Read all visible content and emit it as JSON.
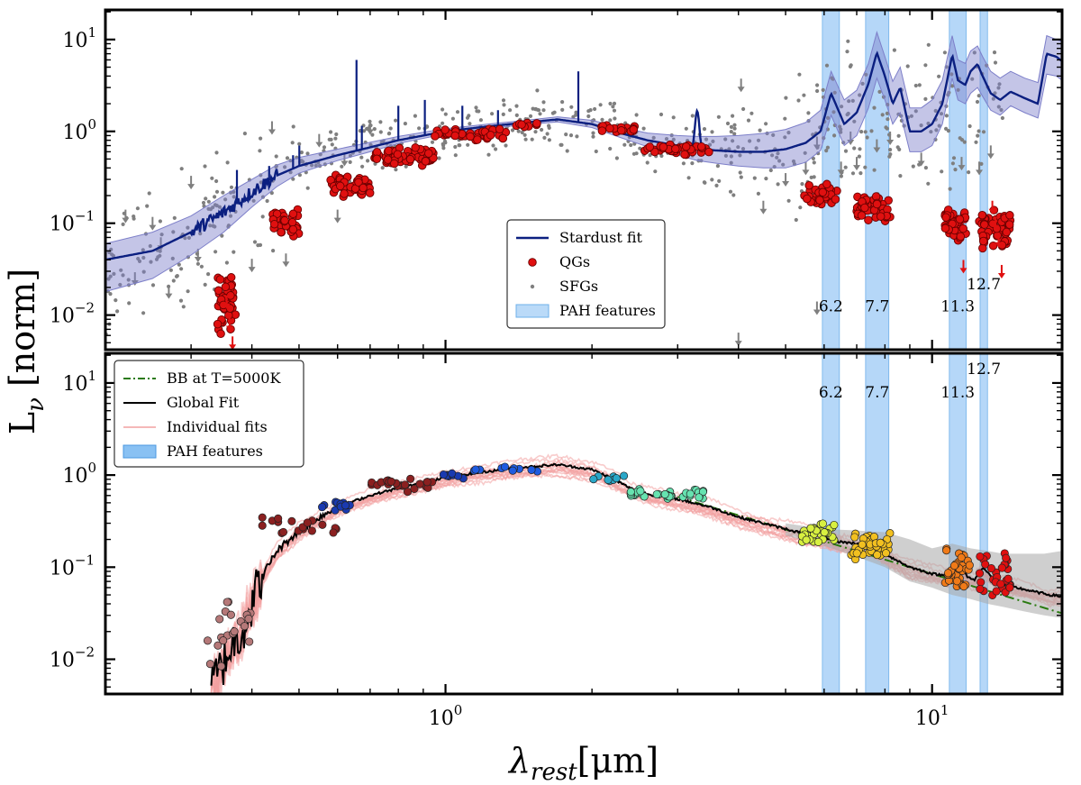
{
  "figure": {
    "ylabel": "L",
    "ylabel_sub": "ν",
    "ylabel_unit": " [norm]",
    "xlabel": "λ",
    "xlabel_sub": "rest",
    "xlabel_unit": "[μm]"
  },
  "colors": {
    "stardust_fit": "#0b1f80",
    "stardust_band": "#7d7fc9",
    "qg_points": "#e01010",
    "sfg_points": "#7f7f7f",
    "pah_band": "#9ccaf5",
    "bb_line": "#2a7a10",
    "global_fit": "#000000",
    "individual_fits": "#f2a0a0",
    "global_band": "#a8a8a8"
  },
  "chart_data": [
    {
      "id": "top",
      "type": "line",
      "title": "",
      "xscale": "log",
      "yscale": "log",
      "xlim": [
        0.2,
        18.5
      ],
      "ylim": [
        0.0042,
        21
      ],
      "x_ticks": [
        {
          "value": 1,
          "base": "10",
          "exp": "0"
        },
        {
          "value": 10,
          "base": "10",
          "exp": "1"
        }
      ],
      "x_ticks_labeled": false,
      "y_ticks": [
        {
          "value": 0.01,
          "base": "10",
          "exp": "−2"
        },
        {
          "value": 0.1,
          "base": "10",
          "exp": "−1"
        },
        {
          "value": 1,
          "base": "10",
          "exp": "0"
        },
        {
          "value": 10,
          "base": "10",
          "exp": "1"
        }
      ],
      "legend": {
        "placement": "lower-center",
        "entries": [
          {
            "label": "Stardust fit",
            "kind": "line"
          },
          {
            "label": "QGs",
            "kind": "red-dot"
          },
          {
            "label": "SFGs",
            "kind": "grey-dot"
          },
          {
            "label": "PAH features",
            "kind": "band"
          }
        ]
      },
      "pah_bands": [
        {
          "label": "6.2",
          "from": 5.95,
          "to": 6.45
        },
        {
          "label": "7.7",
          "from": 7.3,
          "to": 8.15
        },
        {
          "label": "11.3",
          "from": 10.85,
          "to": 11.75
        },
        {
          "label": "12.7",
          "from": 12.55,
          "to": 13.0
        }
      ],
      "pah_label_y": 0.011,
      "pah_label_y_127": 0.019,
      "stardust_fit": {
        "x": [
          0.2,
          0.25,
          0.3,
          0.35,
          0.4,
          0.45,
          0.5,
          0.6,
          0.7,
          0.8,
          1.0,
          1.2,
          1.4,
          1.7,
          2.0,
          2.3,
          2.6,
          3.0,
          3.3,
          3.6,
          4.0,
          4.5,
          5.0,
          5.5,
          5.9,
          6.2,
          6.6,
          7.0,
          7.4,
          7.7,
          8.0,
          8.3,
          8.6,
          9.0,
          9.5,
          10.0,
          10.5,
          11.0,
          11.3,
          11.7,
          12.0,
          12.4,
          12.7,
          13.2,
          13.8,
          14.5,
          15.5,
          16.5,
          17.2,
          18.0,
          18.5
        ],
        "y": [
          0.04,
          0.05,
          0.08,
          0.13,
          0.22,
          0.33,
          0.42,
          0.55,
          0.67,
          0.8,
          1.0,
          1.12,
          1.22,
          1.35,
          1.2,
          0.95,
          0.8,
          0.7,
          0.64,
          0.62,
          0.6,
          0.6,
          0.64,
          0.75,
          1.0,
          2.6,
          1.2,
          1.6,
          3.3,
          7.2,
          4.0,
          2.0,
          3.0,
          1.0,
          1.0,
          1.2,
          2.0,
          6.8,
          3.6,
          3.2,
          4.5,
          5.4,
          4.0,
          2.6,
          2.2,
          2.7,
          2.3,
          2.0,
          7.0,
          6.5,
          5.8
        ]
      },
      "stardust_band": {
        "lower": [
          0.018,
          0.025,
          0.045,
          0.08,
          0.15,
          0.25,
          0.35,
          0.48,
          0.6,
          0.74,
          0.94,
          1.06,
          1.16,
          1.27,
          1.1,
          0.85,
          0.68,
          0.55,
          0.48,
          0.45,
          0.42,
          0.4,
          0.4,
          0.46,
          0.62,
          1.5,
          0.7,
          0.9,
          1.8,
          3.8,
          2.2,
          1.2,
          1.6,
          0.6,
          0.6,
          0.7,
          1.2,
          3.8,
          2.2,
          2.0,
          2.6,
          3.0,
          2.4,
          1.7,
          1.5,
          1.9,
          1.6,
          1.4,
          4.2,
          4.0,
          3.6
        ],
        "upper": [
          0.06,
          0.08,
          0.12,
          0.2,
          0.3,
          0.43,
          0.52,
          0.64,
          0.76,
          0.88,
          1.07,
          1.19,
          1.29,
          1.44,
          1.32,
          1.1,
          0.96,
          0.9,
          0.88,
          0.88,
          0.9,
          0.95,
          1.05,
          1.25,
          1.7,
          4.5,
          2.2,
          2.8,
          5.5,
          12,
          6.5,
          3.5,
          5.0,
          1.8,
          1.8,
          2.2,
          3.6,
          11,
          6.0,
          5.5,
          7.5,
          8.5,
          6.5,
          4.5,
          3.8,
          4.5,
          3.8,
          3.4,
          11,
          10,
          9.5
        ]
      },
      "emission_lines": [
        {
          "x": 0.3727,
          "peak": 0.38
        },
        {
          "x": 0.4341,
          "peak": 0.42
        },
        {
          "x": 0.4861,
          "peak": 0.55
        },
        {
          "x": 0.5007,
          "peak": 0.7
        },
        {
          "x": 0.6563,
          "peak": 6.0
        },
        {
          "x": 0.6731,
          "peak": 1.15
        },
        {
          "x": 0.8,
          "peak": 1.9
        },
        {
          "x": 0.9069,
          "peak": 2.2
        },
        {
          "x": 1.083,
          "peak": 1.9
        },
        {
          "x": 1.282,
          "peak": 1.7
        },
        {
          "x": 1.875,
          "peak": 4.5
        }
      ],
      "qg_groups": [
        {
          "x_from": 0.34,
          "x_to": 0.37,
          "y_from": 0.006,
          "y_to": 0.03,
          "n": 45
        },
        {
          "x_from": 0.44,
          "x_to": 0.5,
          "y_from": 0.07,
          "y_to": 0.15,
          "n": 35
        },
        {
          "x_from": 0.58,
          "x_to": 0.7,
          "y_from": 0.18,
          "y_to": 0.34,
          "n": 45
        },
        {
          "x_from": 0.7,
          "x_to": 0.95,
          "y_from": 0.4,
          "y_to": 0.68,
          "n": 60
        },
        {
          "x_from": 0.95,
          "x_to": 1.35,
          "y_from": 0.78,
          "y_to": 1.08,
          "n": 40
        },
        {
          "x_from": 1.35,
          "x_to": 1.55,
          "y_from": 1.1,
          "y_to": 1.25,
          "n": 10
        },
        {
          "x_from": 2.05,
          "x_to": 2.45,
          "y_from": 0.95,
          "y_to": 1.18,
          "n": 18
        },
        {
          "x_from": 2.55,
          "x_to": 3.5,
          "y_from": 0.55,
          "y_to": 0.75,
          "n": 40
        },
        {
          "x_from": 5.45,
          "x_to": 6.4,
          "y_from": 0.15,
          "y_to": 0.28,
          "n": 35
        },
        {
          "x_from": 7.0,
          "x_to": 8.2,
          "y_from": 0.1,
          "y_to": 0.21,
          "n": 50
        },
        {
          "x_from": 10.6,
          "x_to": 11.8,
          "y_from": 0.06,
          "y_to": 0.15,
          "n": 45
        },
        {
          "x_from": 12.5,
          "x_to": 14.5,
          "y_from": 0.05,
          "y_to": 0.15,
          "n": 55
        }
      ],
      "qg_limits": [
        {
          "x": 0.355,
          "y": 0.014
        },
        {
          "x": 0.36,
          "y": 0.008
        },
        {
          "x": 0.365,
          "y": 0.005
        },
        {
          "x": 11.6,
          "y": 0.034
        },
        {
          "x": 13.5,
          "y": 0.1
        },
        {
          "x": 13.7,
          "y": 0.065
        },
        {
          "x": 13.9,
          "y": 0.03
        },
        {
          "x": 13.3,
          "y": 0.15
        }
      ],
      "sfg_scatter": {
        "x_from": 0.2,
        "x_to": 14.0,
        "n": 650
      },
      "sfg_limits": [
        {
          "x": 0.22,
          "y": 0.12
        },
        {
          "x": 0.23,
          "y": 0.025
        },
        {
          "x": 0.25,
          "y": 0.1
        },
        {
          "x": 0.26,
          "y": 0.06
        },
        {
          "x": 0.27,
          "y": 0.018
        },
        {
          "x": 0.3,
          "y": 0.28
        },
        {
          "x": 0.31,
          "y": 0.045
        },
        {
          "x": 0.4,
          "y": 0.035
        },
        {
          "x": 0.44,
          "y": 1.1
        },
        {
          "x": 0.47,
          "y": 0.04
        },
        {
          "x": 0.55,
          "y": 0.8
        },
        {
          "x": 0.6,
          "y": 0.12
        },
        {
          "x": 0.62,
          "y": 0.5
        },
        {
          "x": 0.7,
          "y": 1.1
        },
        {
          "x": 4.05,
          "y": 3.2
        },
        {
          "x": 4.5,
          "y": 0.15
        },
        {
          "x": 5.0,
          "y": 0.3
        },
        {
          "x": 5.5,
          "y": 0.4
        },
        {
          "x": 5.8,
          "y": 0.75
        },
        {
          "x": 6.5,
          "y": 0.4
        },
        {
          "x": 6.8,
          "y": 0.85
        },
        {
          "x": 7.0,
          "y": 0.45
        },
        {
          "x": 7.7,
          "y": 0.7
        },
        {
          "x": 8.2,
          "y": 0.85
        },
        {
          "x": 9.5,
          "y": 0.5
        },
        {
          "x": 11.5,
          "y": 0.45
        },
        {
          "x": 12.5,
          "y": 0.4
        },
        {
          "x": 13.2,
          "y": 0.6
        },
        {
          "x": 5.8,
          "y": 0.012
        },
        {
          "x": 4.0,
          "y": 0.0055
        }
      ]
    },
    {
      "id": "bottom",
      "type": "line",
      "title": "",
      "xscale": "log",
      "yscale": "log",
      "xlim": [
        0.2,
        18.5
      ],
      "ylim": [
        0.0042,
        21
      ],
      "x_ticks": [
        {
          "value": 1,
          "base": "10",
          "exp": "0"
        },
        {
          "value": 10,
          "base": "10",
          "exp": "1"
        }
      ],
      "x_ticks_labeled": true,
      "y_ticks": [
        {
          "value": 0.01,
          "base": "10",
          "exp": "−2"
        },
        {
          "value": 0.1,
          "base": "10",
          "exp": "−1"
        },
        {
          "value": 1,
          "base": "10",
          "exp": "0"
        },
        {
          "value": 10,
          "base": "10",
          "exp": "1"
        }
      ],
      "legend": {
        "placement": "upper-left",
        "entries": [
          {
            "label": "BB at T=5000K",
            "kind": "dashdot"
          },
          {
            "label": "Global Fit",
            "kind": "black-line"
          },
          {
            "label": "Individual fits",
            "kind": "pink-line"
          },
          {
            "label": "PAH features",
            "kind": "band"
          }
        ]
      },
      "pah_bands": [
        {
          "label": "6.2",
          "from": 5.95,
          "to": 6.45
        },
        {
          "label": "7.7",
          "from": 7.3,
          "to": 8.15
        },
        {
          "label": "11.3",
          "from": 10.85,
          "to": 11.75
        },
        {
          "label": "12.7",
          "from": 12.55,
          "to": 13.0
        }
      ],
      "pah_label_y": 7.0,
      "pah_label_y_127": 12.5,
      "global_fit": {
        "x": [
          0.33,
          0.345,
          0.36,
          0.38,
          0.4,
          0.42,
          0.45,
          0.5,
          0.55,
          0.6,
          0.7,
          0.8,
          1.0,
          1.2,
          1.4,
          1.7,
          2.0,
          2.2,
          2.4,
          2.6,
          3.0,
          3.5,
          4.0,
          4.5,
          5.0,
          5.5,
          6.0,
          6.4,
          7.0,
          7.6,
          8.2,
          9.0,
          10.0,
          10.8,
          11.3,
          11.8,
          12.2,
          12.7,
          13.5,
          14.5,
          16.0,
          17.5,
          18.5
        ],
        "y": [
          0.005,
          0.008,
          0.013,
          0.02,
          0.04,
          0.08,
          0.15,
          0.25,
          0.35,
          0.45,
          0.6,
          0.72,
          0.95,
          1.08,
          1.2,
          1.3,
          1.15,
          0.92,
          0.72,
          0.62,
          0.55,
          0.45,
          0.35,
          0.3,
          0.26,
          0.23,
          0.21,
          0.19,
          0.18,
          0.17,
          0.13,
          0.1,
          0.085,
          0.08,
          0.11,
          0.08,
          0.072,
          0.1,
          0.07,
          0.062,
          0.055,
          0.05,
          0.048
        ]
      },
      "global_band": {
        "x": [
          5.0,
          6.0,
          7.0,
          8.0,
          9.0,
          10.0,
          11.0,
          12.0,
          13.0,
          14.0,
          15.5,
          17.0,
          18.5
        ],
        "lower": [
          0.22,
          0.17,
          0.13,
          0.1,
          0.07,
          0.06,
          0.05,
          0.045,
          0.04,
          0.037,
          0.033,
          0.03,
          0.028
        ],
        "upper": [
          0.3,
          0.26,
          0.25,
          0.24,
          0.2,
          0.16,
          0.18,
          0.16,
          0.15,
          0.14,
          0.14,
          0.14,
          0.15
        ]
      },
      "bb_line": {
        "x_from": 3.0,
        "x_to": 18.5,
        "y_at_3um": 0.58,
        "slope": -1.6
      },
      "point_groups": [
        {
          "x_from": 0.32,
          "x_to": 0.4,
          "y_from": 0.007,
          "y_to": 0.06,
          "n": 20,
          "color": "#b57878"
        },
        {
          "x_from": 0.42,
          "x_to": 0.6,
          "y_from": 0.2,
          "y_to": 0.42,
          "n": 18,
          "color": "#8b2020"
        },
        {
          "x_from": 0.55,
          "x_to": 0.65,
          "y_from": 0.4,
          "y_to": 0.55,
          "n": 12,
          "color": "#1a3ab0"
        },
        {
          "x_from": 0.7,
          "x_to": 0.95,
          "y_from": 0.65,
          "y_to": 0.95,
          "n": 25,
          "color": "#8b2020"
        },
        {
          "x_from": 0.95,
          "x_to": 1.1,
          "y_from": 0.9,
          "y_to": 1.1,
          "n": 8,
          "color": "#1a3ab0"
        },
        {
          "x_from": 1.1,
          "x_to": 1.55,
          "y_from": 1.05,
          "y_to": 1.25,
          "n": 10,
          "color": "#1e5be0"
        },
        {
          "x_from": 2.0,
          "x_to": 2.4,
          "y_from": 0.85,
          "y_to": 1.05,
          "n": 8,
          "color": "#2aa7c8"
        },
        {
          "x_from": 2.4,
          "x_to": 3.4,
          "y_from": 0.55,
          "y_to": 0.72,
          "n": 35,
          "color": "#66e3b0"
        },
        {
          "x_from": 5.4,
          "x_to": 6.3,
          "y_from": 0.18,
          "y_to": 0.3,
          "n": 30,
          "color": "#d8f040"
        },
        {
          "x_from": 6.8,
          "x_to": 8.2,
          "y_from": 0.11,
          "y_to": 0.25,
          "n": 40,
          "color": "#f2c020"
        },
        {
          "x_from": 10.6,
          "x_to": 12.0,
          "y_from": 0.05,
          "y_to": 0.17,
          "n": 40,
          "color": "#f07a18"
        },
        {
          "x_from": 12.5,
          "x_to": 14.5,
          "y_from": 0.04,
          "y_to": 0.16,
          "n": 30,
          "color": "#e01010"
        }
      ]
    }
  ]
}
